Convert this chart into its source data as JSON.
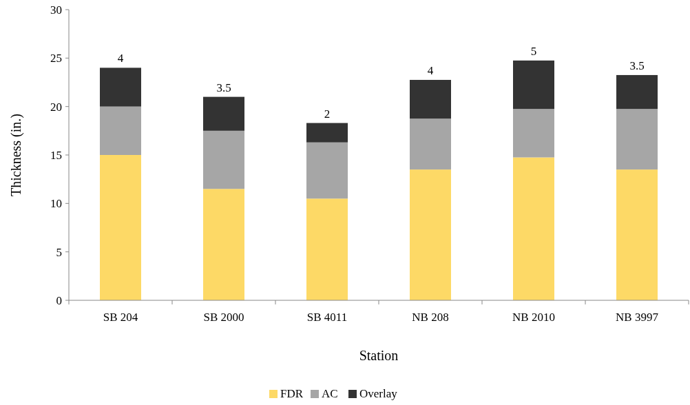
{
  "chart_data": {
    "type": "bar",
    "stacked": true,
    "xlabel": "Station",
    "ylabel": "Thickness (in.)",
    "categories": [
      "SB 204",
      "SB 2000",
      "SB 4011",
      "NB 208",
      "NB 2010",
      "NB 3997"
    ],
    "series": [
      {
        "name": "FDR",
        "color": "#fdd966",
        "values": [
          15,
          11.5,
          10.5,
          13.5,
          14.75,
          13.5
        ]
      },
      {
        "name": "AC",
        "color": "#a6a6a6",
        "values": [
          5,
          6,
          5.8,
          5.25,
          5,
          6.25
        ]
      },
      {
        "name": "Overlay",
        "color": "#333333",
        "values": [
          4,
          3.5,
          2,
          4,
          5,
          3.5
        ],
        "value_labels": [
          "4",
          "3.5",
          "2",
          "4",
          "5",
          "3.5"
        ]
      }
    ],
    "ylim": [
      0,
      30
    ],
    "yticks": [
      0,
      5,
      10,
      15,
      20,
      25,
      30
    ],
    "grid": false,
    "legend": "bottom"
  }
}
